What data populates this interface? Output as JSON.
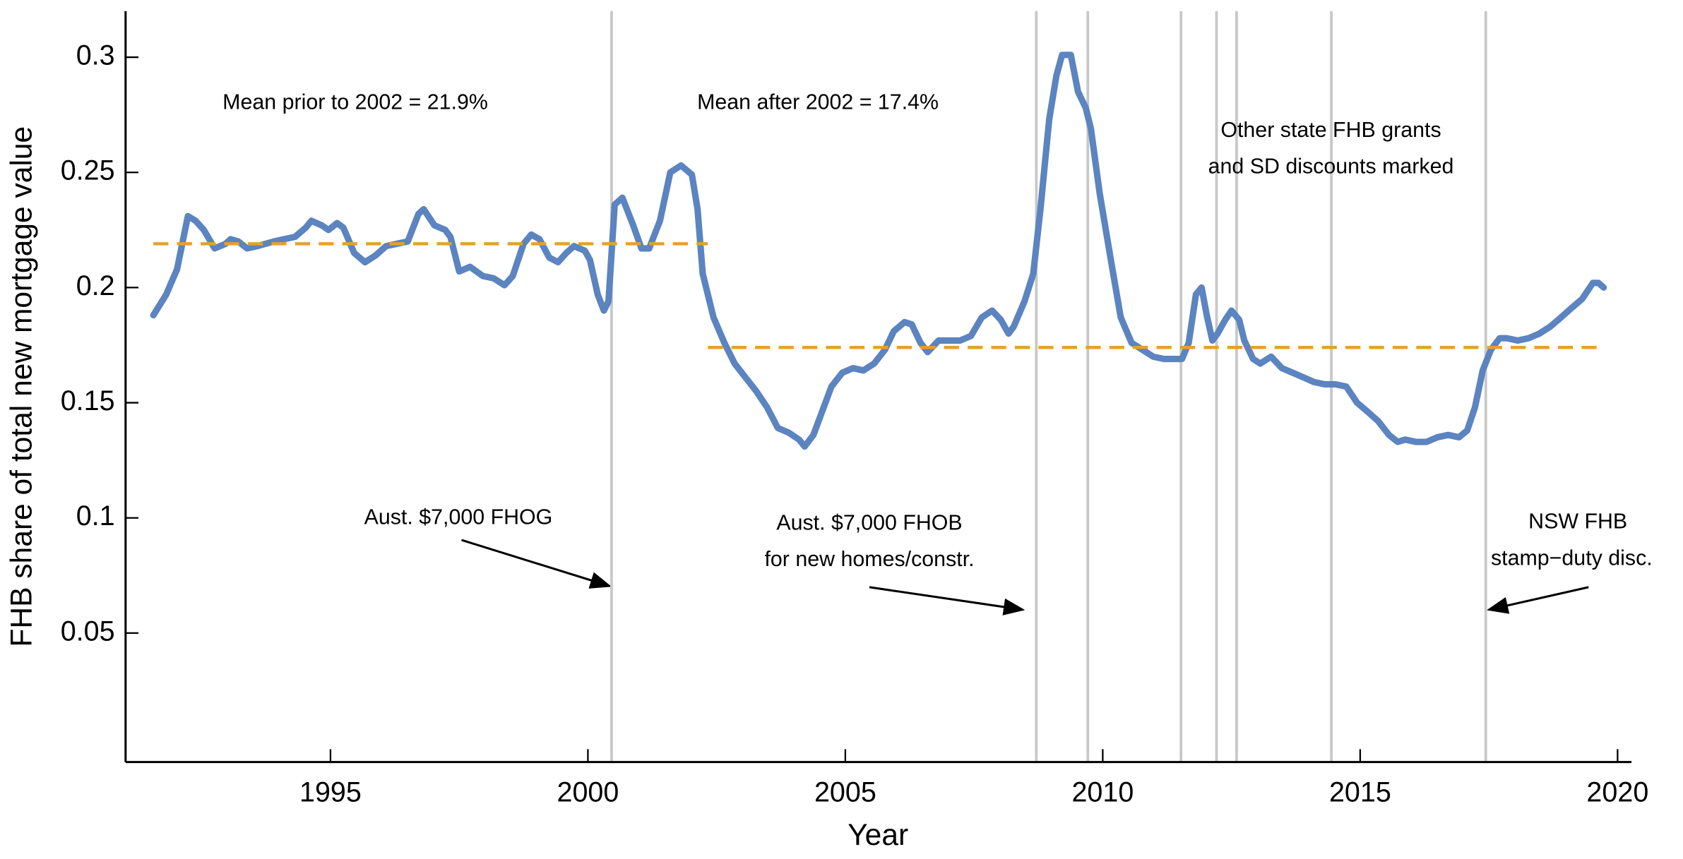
{
  "chart_data": {
    "type": "line",
    "x_label": "Year",
    "y_label": "FHB share of total new mortgage value",
    "xlim": [
      1991.02,
      2020.27
    ],
    "ylim": [
      -0.006,
      0.32
    ],
    "xticks": [
      1995,
      2000,
      2005,
      2010,
      2015,
      2020
    ],
    "yticks": [
      0.05,
      0.1,
      0.15,
      0.2,
      0.25,
      0.3
    ],
    "event_lines": [
      2000.46,
      2008.71,
      2009.71,
      2011.52,
      2012.21,
      2012.6,
      2014.44,
      2017.44
    ],
    "event_color": "#c8c8c8",
    "series": [
      {
        "color": "#5b84c0",
        "dashed": false,
        "x": [
          1991.56,
          1991.81,
          1992.02,
          1992.23,
          1992.38,
          1992.54,
          1992.75,
          1992.96,
          1993.06,
          1993.21,
          1993.38,
          1993.58,
          1993.9,
          1994.1,
          1994.31,
          1994.52,
          1994.63,
          1994.83,
          1994.96,
          1995.13,
          1995.25,
          1995.46,
          1995.67,
          1995.88,
          1996.08,
          1996.29,
          1996.5,
          1996.71,
          1996.81,
          1997.02,
          1997.23,
          1997.33,
          1997.5,
          1997.71,
          1997.96,
          1998.17,
          1998.38,
          1998.54,
          1998.75,
          1998.9,
          1999.06,
          1999.25,
          1999.42,
          1999.58,
          1999.73,
          1999.94,
          2000.04,
          2000.19,
          2000.31,
          2000.4,
          2000.52,
          2000.67,
          2000.88,
          2001.04,
          2001.19,
          2001.4,
          2001.6,
          2001.81,
          2002.02,
          2002.13,
          2002.23,
          2002.44,
          2002.65,
          2002.85,
          2003.06,
          2003.27,
          2003.48,
          2003.69,
          2003.9,
          2004.1,
          2004.21,
          2004.38,
          2004.58,
          2004.73,
          2004.94,
          2005.15,
          2005.35,
          2005.56,
          2005.77,
          2005.94,
          2006.15,
          2006.29,
          2006.46,
          2006.6,
          2006.81,
          2007.02,
          2007.23,
          2007.44,
          2007.65,
          2007.85,
          2008.02,
          2008.17,
          2008.27,
          2008.48,
          2008.65,
          2008.79,
          2008.96,
          2009.1,
          2009.21,
          2009.38,
          2009.52,
          2009.67,
          2009.77,
          2009.94,
          2010.15,
          2010.35,
          2010.56,
          2010.77,
          2010.98,
          2011.19,
          2011.4,
          2011.54,
          2011.67,
          2011.81,
          2011.92,
          2012.02,
          2012.13,
          2012.23,
          2012.38,
          2012.5,
          2012.65,
          2012.75,
          2012.92,
          2013.06,
          2013.27,
          2013.48,
          2013.69,
          2013.9,
          2014.1,
          2014.31,
          2014.52,
          2014.73,
          2014.94,
          2015.15,
          2015.35,
          2015.56,
          2015.73,
          2015.88,
          2016.08,
          2016.29,
          2016.5,
          2016.71,
          2016.92,
          2017.08,
          2017.23,
          2017.38,
          2017.54,
          2017.71,
          2017.85,
          2018.06,
          2018.27,
          2018.48,
          2018.69,
          2018.9,
          2019.1,
          2019.31,
          2019.52,
          2019.63,
          2019.73
        ],
        "values": [
          0.188,
          0.197,
          0.208,
          0.231,
          0.229,
          0.225,
          0.217,
          0.219,
          0.221,
          0.22,
          0.217,
          0.218,
          0.22,
          0.221,
          0.222,
          0.226,
          0.229,
          0.227,
          0.225,
          0.228,
          0.226,
          0.215,
          0.211,
          0.214,
          0.218,
          0.219,
          0.22,
          0.232,
          0.234,
          0.227,
          0.225,
          0.222,
          0.207,
          0.209,
          0.205,
          0.204,
          0.201,
          0.205,
          0.219,
          0.223,
          0.221,
          0.213,
          0.211,
          0.215,
          0.218,
          0.216,
          0.212,
          0.197,
          0.19,
          0.194,
          0.236,
          0.239,
          0.227,
          0.217,
          0.217,
          0.229,
          0.25,
          0.253,
          0.249,
          0.234,
          0.206,
          0.187,
          0.176,
          0.167,
          0.161,
          0.155,
          0.148,
          0.139,
          0.137,
          0.134,
          0.131,
          0.136,
          0.148,
          0.157,
          0.163,
          0.165,
          0.164,
          0.167,
          0.173,
          0.181,
          0.185,
          0.184,
          0.176,
          0.172,
          0.177,
          0.177,
          0.177,
          0.179,
          0.187,
          0.19,
          0.186,
          0.18,
          0.183,
          0.194,
          0.206,
          0.234,
          0.273,
          0.292,
          0.301,
          0.301,
          0.285,
          0.278,
          0.269,
          0.241,
          0.213,
          0.187,
          0.176,
          0.173,
          0.17,
          0.169,
          0.169,
          0.169,
          0.176,
          0.197,
          0.2,
          0.188,
          0.177,
          0.18,
          0.186,
          0.19,
          0.186,
          0.177,
          0.169,
          0.167,
          0.17,
          0.165,
          0.163,
          0.161,
          0.159,
          0.158,
          0.158,
          0.157,
          0.15,
          0.146,
          0.142,
          0.136,
          0.133,
          0.134,
          0.133,
          0.133,
          0.135,
          0.136,
          0.135,
          0.138,
          0.148,
          0.164,
          0.173,
          0.178,
          0.178,
          0.177,
          0.178,
          0.18,
          0.183,
          0.187,
          0.191,
          0.195,
          0.202,
          0.202,
          0.2
        ]
      },
      {
        "color": "#e5a12b",
        "dashed": true,
        "x": [
          1991.56,
          2002.33
        ],
        "values": [
          0.219,
          0.219
        ]
      },
      {
        "color": "#e5a12b",
        "dashed": true,
        "x": [
          2002.33,
          2019.63
        ],
        "values": [
          0.174,
          0.174
        ]
      }
    ],
    "annotations": [
      [
        "Mean prior to 2002 = 21.9%"
      ],
      [
        "Mean after 2002 = 17.4%"
      ],
      [
        "Other state FHB grants",
        "and SD discounts marked"
      ],
      [
        "Aust. $7,000 FHOG"
      ],
      [
        "Aust. $7,000 FHOB",
        "for new homes/constr."
      ],
      [
        "NSW FHB",
        "stamp−duty disc."
      ]
    ]
  }
}
